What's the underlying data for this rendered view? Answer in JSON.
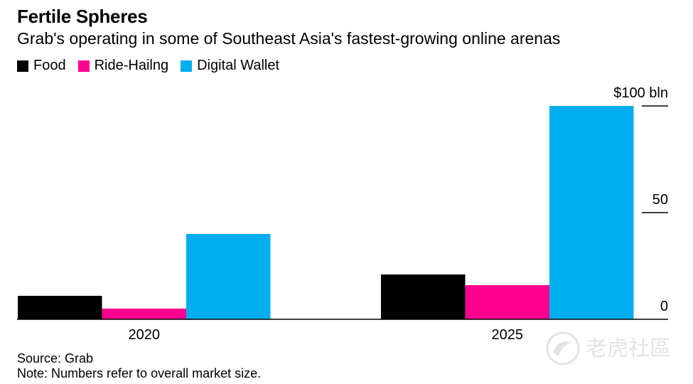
{
  "title": "Fertile Spheres",
  "subtitle": "Grab's operating in some of Southeast Asia's fastest-growing online arenas",
  "legend": [
    {
      "label": "Food",
      "color": "#000000"
    },
    {
      "label": "Ride-Hailng",
      "color": "#ff0090"
    },
    {
      "label": "Digital Wallet",
      "color": "#00aeef"
    }
  ],
  "source": "Source: Grab",
  "note": "Note: Numbers refer to overall market size.",
  "watermark_text": "老虎社區",
  "chart_data": {
    "type": "bar",
    "categories": [
      "2020",
      "2025"
    ],
    "series": [
      {
        "name": "Food",
        "color": "#000000",
        "values": [
          11,
          21
        ]
      },
      {
        "name": "Ride-Hailng",
        "color": "#ff0090",
        "values": [
          5,
          16
        ]
      },
      {
        "name": "Digital Wallet",
        "color": "#00aeef",
        "values": [
          40,
          100
        ]
      }
    ],
    "yticks": [
      {
        "value": 100,
        "label": "$100 bln"
      },
      {
        "value": 50,
        "label": "50"
      },
      {
        "value": 0,
        "label": "0"
      }
    ],
    "ylim": [
      0,
      100
    ],
    "title": "Fertile Spheres",
    "xlabel": "",
    "ylabel": "",
    "grid": false,
    "legend_position": "top-left"
  }
}
